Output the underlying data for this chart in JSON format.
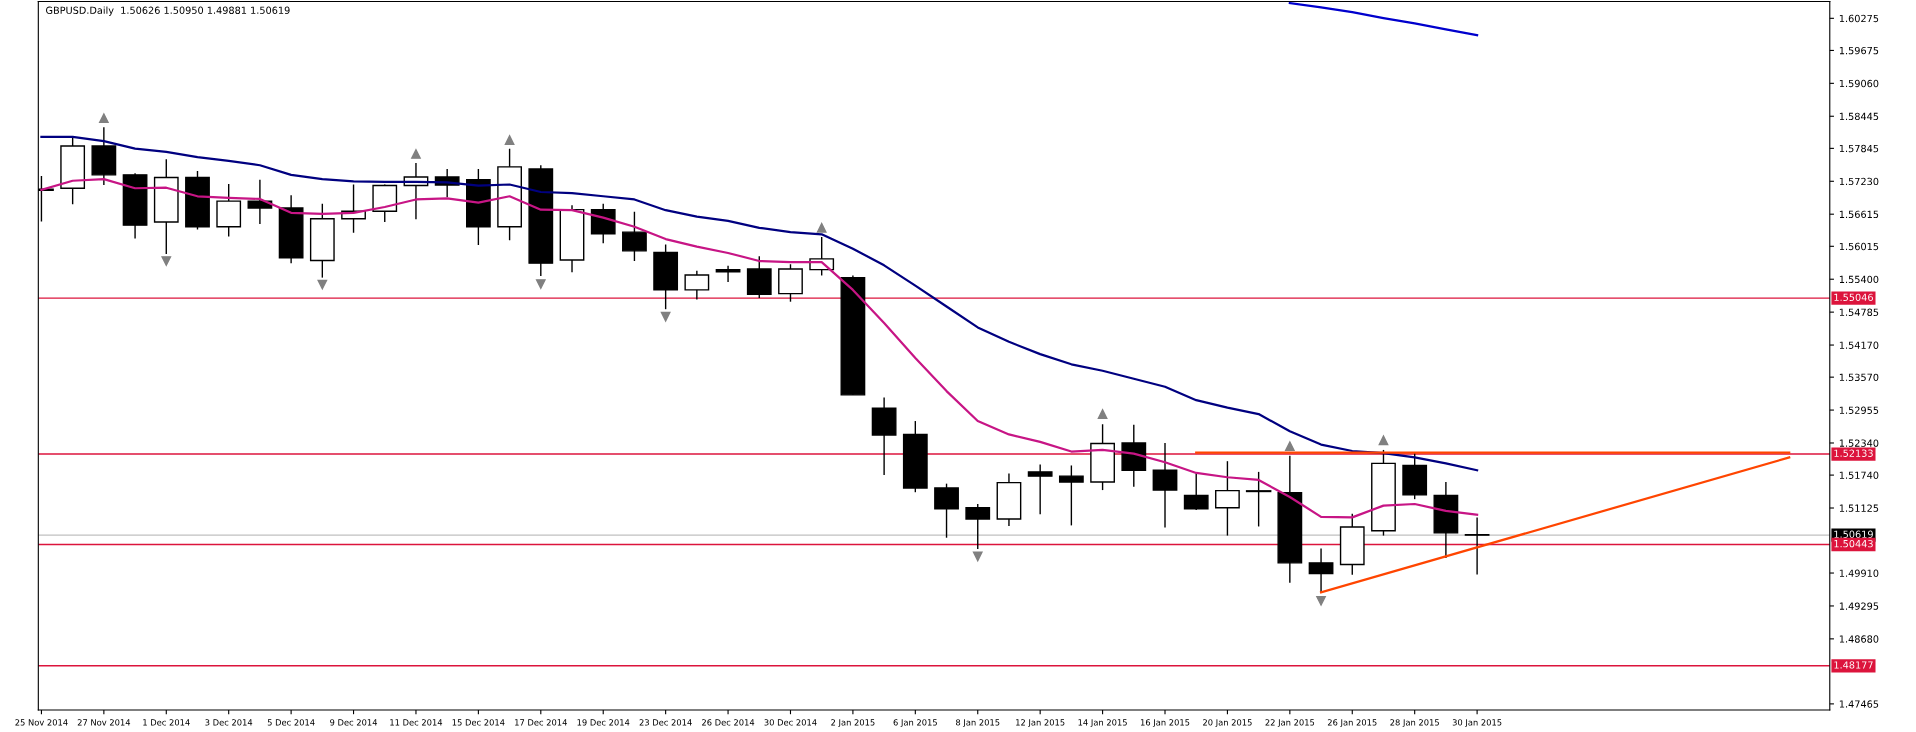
{
  "chart_data": {
    "type": "candlestick",
    "title": "GBPUSD.Daily  1.50626 1.50950 1.49881 1.50619",
    "categories": [
      "25 Nov 2014",
      null,
      "27 Nov 2014",
      null,
      "1 Dec 2014",
      null,
      "3 Dec 2014",
      null,
      "5 Dec 2014",
      null,
      "9 Dec 2014",
      null,
      "11 Dec 2014",
      null,
      "15 Dec 2014",
      null,
      "17 Dec 2014",
      null,
      "19 Dec 2014",
      null,
      "23 Dec 2014",
      null,
      "26 Dec 2014",
      null,
      "30 Dec 2014",
      null,
      "2 Jan 2015",
      null,
      "6 Jan 2015",
      null,
      "8 Jan 2015",
      null,
      "12 Jan 2015",
      null,
      "14 Jan 2015",
      null,
      "16 Jan 2015",
      null,
      "20 Jan 2015",
      null,
      "22 Jan 2015",
      null,
      "26 Jan 2015",
      null,
      "28 Jan 2015",
      null,
      "30 Jan 2015",
      null,
      null,
      null,
      null,
      null,
      null,
      null,
      null,
      null,
      null,
      null
    ],
    "ohlc": [
      [
        1.5708,
        1.5733,
        1.5648,
        1.5706
      ],
      [
        1.571,
        1.5804,
        1.568,
        1.5789
      ],
      [
        1.5789,
        1.5824,
        1.5716,
        1.5735
      ],
      [
        1.5735,
        1.5738,
        1.5616,
        1.5641
      ],
      [
        1.5647,
        1.5764,
        1.5587,
        1.573
      ],
      [
        1.573,
        1.5742,
        1.5633,
        1.5638
      ],
      [
        1.5638,
        1.5718,
        1.562,
        1.5686
      ],
      [
        1.5686,
        1.5726,
        1.5643,
        1.5673
      ],
      [
        1.5673,
        1.5697,
        1.557,
        1.558
      ],
      [
        1.5575,
        1.5681,
        1.5543,
        1.5653
      ],
      [
        1.5653,
        1.5717,
        1.5627,
        1.5667
      ],
      [
        1.5667,
        1.5717,
        1.5647,
        1.5715
      ],
      [
        1.5715,
        1.5757,
        1.5652,
        1.5731
      ],
      [
        1.5731,
        1.5746,
        1.5693,
        1.5716
      ],
      [
        1.5726,
        1.5746,
        1.5604,
        1.5638
      ],
      [
        1.5638,
        1.5784,
        1.5613,
        1.575
      ],
      [
        1.5746,
        1.5753,
        1.5546,
        1.557
      ],
      [
        1.5576,
        1.5678,
        1.5553,
        1.567
      ],
      [
        1.567,
        1.5681,
        1.5607,
        1.5625
      ],
      [
        1.5628,
        1.5666,
        1.5574,
        1.5593
      ],
      [
        1.559,
        1.5605,
        1.5484,
        1.552
      ],
      [
        1.552,
        1.5556,
        1.5502,
        1.5548
      ],
      [
        1.5558,
        1.5565,
        1.5535,
        1.5554
      ],
      [
        1.5559,
        1.5583,
        1.5505,
        1.5512
      ],
      [
        1.5513,
        1.5568,
        1.5498,
        1.5559
      ],
      [
        1.5558,
        1.5619,
        1.5547,
        1.5578
      ],
      [
        1.5543,
        1.5547,
        1.5324,
        1.5324
      ],
      [
        1.5299,
        1.5319,
        1.5174,
        1.5249
      ],
      [
        1.525,
        1.5275,
        1.5142,
        1.515
      ],
      [
        1.515,
        1.5158,
        1.5057,
        1.5111
      ],
      [
        1.5113,
        1.512,
        1.5036,
        1.5092
      ],
      [
        1.5092,
        1.5177,
        1.5079,
        1.516
      ],
      [
        1.518,
        1.5194,
        1.5101,
        1.5172
      ],
      [
        1.5172,
        1.5192,
        1.508,
        1.5161
      ],
      [
        1.5161,
        1.5269,
        1.5146,
        1.5233
      ],
      [
        1.5234,
        1.5268,
        1.5152,
        1.5183
      ],
      [
        1.5183,
        1.5234,
        1.5076,
        1.5146
      ],
      [
        1.5136,
        1.5177,
        1.5109,
        1.5111
      ],
      [
        1.5113,
        1.52,
        1.5061,
        1.5145
      ],
      [
        1.5144,
        1.518,
        1.5078,
        1.5144
      ],
      [
        1.5141,
        1.521,
        1.4973,
        1.501
      ],
      [
        1.501,
        1.5037,
        1.4955,
        1.499
      ],
      [
        1.5007,
        1.5102,
        1.4988,
        1.5077
      ],
      [
        1.507,
        1.5221,
        1.5061,
        1.5196
      ],
      [
        1.5192,
        1.5215,
        1.5129,
        1.5137
      ],
      [
        1.5136,
        1.5161,
        1.5019,
        1.5066
      ],
      [
        1.50626,
        1.5095,
        1.49881,
        1.50619
      ],
      null,
      null,
      null,
      null,
      null,
      null,
      null,
      null,
      null,
      null,
      null
    ],
    "series": [
      {
        "type": "line",
        "color": "#000080",
        "values": [
          1.5806,
          1.5806,
          1.5798,
          1.5784,
          1.5778,
          1.5768,
          1.5761,
          1.5753,
          1.5735,
          1.5727,
          1.5723,
          1.5722,
          1.5722,
          1.5721,
          1.5715,
          1.5717,
          1.5703,
          1.5701,
          1.5695,
          1.5689,
          1.5669,
          1.5657,
          1.5649,
          1.5636,
          1.5628,
          1.5624,
          1.5597,
          1.5566,
          1.5528,
          1.5489,
          1.545,
          1.5423,
          1.54,
          1.5381,
          1.5369,
          1.5354,
          1.5339,
          1.5314,
          1.53,
          1.5288,
          1.5256,
          1.5231,
          1.5219,
          1.5215,
          1.5207,
          1.5196,
          1.5183,
          null,
          null,
          null,
          null,
          null,
          null,
          null,
          null,
          null,
          null,
          null
        ]
      },
      {
        "type": "line",
        "color": "#c71585",
        "values": [
          1.5707,
          1.5724,
          1.5727,
          1.571,
          1.5711,
          1.5695,
          1.5692,
          1.569,
          1.5664,
          1.5662,
          1.5664,
          1.5675,
          1.5689,
          1.5691,
          1.5683,
          1.5695,
          1.567,
          1.5669,
          1.5655,
          1.5638,
          1.5615,
          1.5601,
          1.5589,
          1.5574,
          1.5572,
          1.5572,
          1.552,
          1.5458,
          1.5393,
          1.5331,
          1.5275,
          1.525,
          1.5236,
          1.5218,
          1.5221,
          1.5214,
          1.5198,
          1.5178,
          1.517,
          1.5165,
          1.5133,
          1.5096,
          1.5095,
          1.5117,
          1.512,
          1.5107,
          1.51,
          null,
          null,
          null,
          null,
          null,
          null,
          null,
          null,
          null,
          null,
          null
        ]
      },
      {
        "type": "line",
        "color": "#0000cd",
        "values": [
          null,
          null,
          null,
          null,
          null,
          null,
          null,
          null,
          null,
          null,
          null,
          null,
          null,
          null,
          null,
          null,
          null,
          null,
          null,
          null,
          null,
          null,
          null,
          null,
          null,
          null,
          null,
          null,
          null,
          null,
          null,
          null,
          null,
          null,
          null,
          null,
          null,
          null,
          null,
          null,
          1.6056,
          1.6048,
          1.6039,
          1.6028,
          1.6018,
          1.6007,
          1.5996,
          null,
          null,
          null,
          null,
          null,
          null,
          null,
          null,
          null,
          null,
          null
        ]
      },
      {
        "type": "scatter",
        "marker": "triangle",
        "color": "#808080",
        "values": [
          null,
          null,
          1.5841,
          null,
          null,
          null,
          null,
          null,
          null,
          null,
          null,
          null,
          1.5774,
          null,
          null,
          1.58,
          null,
          null,
          null,
          null,
          null,
          null,
          null,
          null,
          null,
          1.5636,
          null,
          null,
          null,
          null,
          null,
          null,
          null,
          null,
          1.5288,
          null,
          null,
          null,
          null,
          null,
          1.5228,
          null,
          null,
          1.5239,
          null,
          null,
          null,
          null,
          null,
          null,
          null,
          null,
          null,
          null,
          null,
          null,
          null,
          null
        ]
      },
      {
        "type": "scatter",
        "marker": "triangle",
        "color": "#808080",
        "values": [
          null,
          null,
          null,
          null,
          1.5574,
          null,
          null,
          null,
          null,
          1.553,
          null,
          null,
          null,
          null,
          null,
          null,
          1.5531,
          null,
          null,
          null,
          1.547,
          null,
          null,
          null,
          null,
          null,
          null,
          null,
          null,
          null,
          1.5022,
          null,
          null,
          null,
          null,
          null,
          null,
          null,
          null,
          null,
          null,
          1.4939,
          null,
          null,
          null,
          null,
          null,
          null,
          null,
          null,
          null,
          null,
          null,
          null,
          null,
          null,
          null,
          null
        ]
      },
      {
        "type": "line",
        "color": "#ff4500",
        "values": [
          null,
          null,
          null,
          null,
          null,
          null,
          null,
          null,
          null,
          null,
          null,
          null,
          null,
          null,
          null,
          null,
          null,
          null,
          null,
          null,
          null,
          null,
          null,
          null,
          null,
          null,
          null,
          null,
          null,
          null,
          null,
          null,
          null,
          null,
          null,
          null,
          null,
          1.5216,
          null,
          null,
          null,
          null,
          null,
          null,
          null,
          null,
          null,
          null,
          null,
          null,
          null,
          null,
          null,
          null,
          null,
          null,
          1.5216,
          null
        ]
      },
      {
        "type": "line",
        "color": "#ff4500",
        "values": [
          null,
          null,
          null,
          null,
          null,
          null,
          null,
          null,
          null,
          null,
          null,
          null,
          null,
          null,
          null,
          null,
          null,
          null,
          null,
          null,
          null,
          null,
          null,
          null,
          null,
          null,
          null,
          null,
          null,
          null,
          null,
          null,
          null,
          null,
          null,
          null,
          null,
          null,
          null,
          null,
          null,
          1.4955,
          null,
          null,
          null,
          null,
          null,
          null,
          null,
          null,
          null,
          null,
          null,
          null,
          null,
          null,
          1.5207,
          null
        ]
      }
    ],
    "ref_lines": [
      {
        "axis": "y",
        "value": 1.55046,
        "label": "1.55046",
        "color": "#dc143c"
      },
      {
        "axis": "y",
        "value": 1.52133,
        "label": "1.52133",
        "color": "#dc143c"
      },
      {
        "axis": "y",
        "value": 1.50619,
        "label": "1.50619",
        "color": "#c0c0c0"
      },
      {
        "axis": "y",
        "value": 1.50443,
        "label": "1.50443",
        "color": "#dc143c"
      },
      {
        "axis": "y",
        "value": 1.48177,
        "label": "1.48177",
        "color": "#dc143c"
      }
    ],
    "ylim": [
      1.4735,
      1.6059
    ],
    "yticks": [
      1.60275,
      1.59675,
      {
        "value": 1.5906,
        "label": "1.59060"
      },
      1.58445,
      1.57845,
      {
        "value": 1.5723,
        "label": "1.57230"
      },
      1.56615,
      1.56015,
      {
        "value": 1.554,
        "label": "1.55400"
      },
      1.54785,
      {
        "value": 1.5417,
        "label": "1.54170"
      },
      {
        "value": 1.5357,
        "label": "1.53570"
      },
      1.52955,
      {
        "value": 1.5234,
        "label": "1.52340"
      },
      {
        "value": 1.5174,
        "label": "1.51740"
      },
      1.51125,
      {
        "value": 1.4991,
        "label": "1.49910"
      },
      1.49295,
      {
        "value": 1.4868,
        "label": "1.48680"
      },
      1.47465
    ]
  }
}
